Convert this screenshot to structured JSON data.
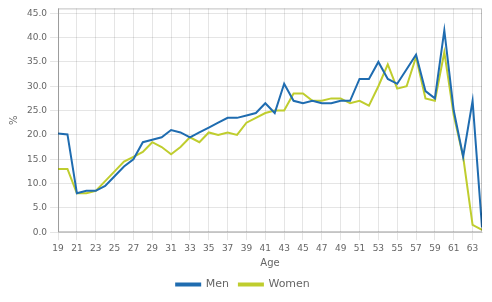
{
  "chart_data": {
    "type": "line",
    "xlabel": "Age",
    "ylabel": "%",
    "x": [
      19,
      20,
      21,
      22,
      23,
      24,
      25,
      26,
      27,
      28,
      29,
      30,
      31,
      32,
      33,
      34,
      35,
      36,
      37,
      38,
      39,
      40,
      41,
      42,
      43,
      44,
      45,
      46,
      47,
      48,
      49,
      50,
      51,
      52,
      53,
      54,
      55,
      56,
      57,
      58,
      59,
      60,
      61,
      62,
      63,
      64
    ],
    "series": [
      {
        "name": "Men",
        "color": "#1F6CB0",
        "values": [
          20.3,
          20.1,
          8.0,
          8.5,
          8.5,
          9.5,
          11.5,
          13.5,
          15.0,
          18.5,
          19.0,
          19.5,
          21.0,
          20.5,
          19.5,
          20.5,
          21.5,
          22.5,
          23.5,
          23.5,
          24.0,
          24.5,
          26.5,
          24.5,
          30.5,
          27.0,
          26.5,
          27.0,
          26.5,
          26.5,
          27.0,
          27.0,
          31.5,
          31.5,
          35.0,
          31.5,
          30.5,
          33.5,
          36.5,
          29.0,
          27.5,
          41.5,
          25.0,
          15.5,
          27.0,
          1.0
        ]
      },
      {
        "name": "Women",
        "color": "#BFCD2E",
        "values": [
          13.0,
          13.0,
          8.0,
          8.0,
          8.5,
          10.5,
          12.5,
          14.5,
          15.5,
          16.5,
          18.5,
          17.5,
          16.0,
          17.5,
          19.5,
          18.5,
          20.5,
          20.0,
          20.5,
          20.0,
          22.5,
          23.5,
          24.5,
          25.0,
          25.0,
          28.5,
          28.5,
          27.0,
          27.0,
          27.5,
          27.5,
          26.5,
          27.0,
          26.0,
          30.0,
          34.5,
          29.5,
          30.0,
          36.0,
          27.5,
          27.0,
          37.0,
          24.0,
          15.5,
          1.5,
          0.5
        ]
      }
    ],
    "xlim": [
      19,
      64
    ],
    "xticks": [
      19,
      21,
      23,
      25,
      27,
      29,
      31,
      33,
      35,
      37,
      39,
      41,
      43,
      45,
      47,
      49,
      51,
      53,
      55,
      57,
      59,
      61,
      63
    ],
    "ylim": [
      0,
      46
    ],
    "yticks": [
      {
        "value": 0,
        "label": "0.0"
      },
      {
        "value": 5,
        "label": "5.0"
      },
      {
        "value": 10,
        "label": "10.0"
      },
      {
        "value": 15,
        "label": "15.0"
      },
      {
        "value": 20,
        "label": "20.0"
      },
      {
        "value": 25,
        "label": "25.0"
      },
      {
        "value": 30,
        "label": "30.0"
      },
      {
        "value": 35,
        "label": "35.0"
      },
      {
        "value": 40,
        "label": "40.0"
      },
      {
        "value": 45,
        "label": "45.0"
      }
    ],
    "grid": true,
    "legend": "bottom"
  }
}
